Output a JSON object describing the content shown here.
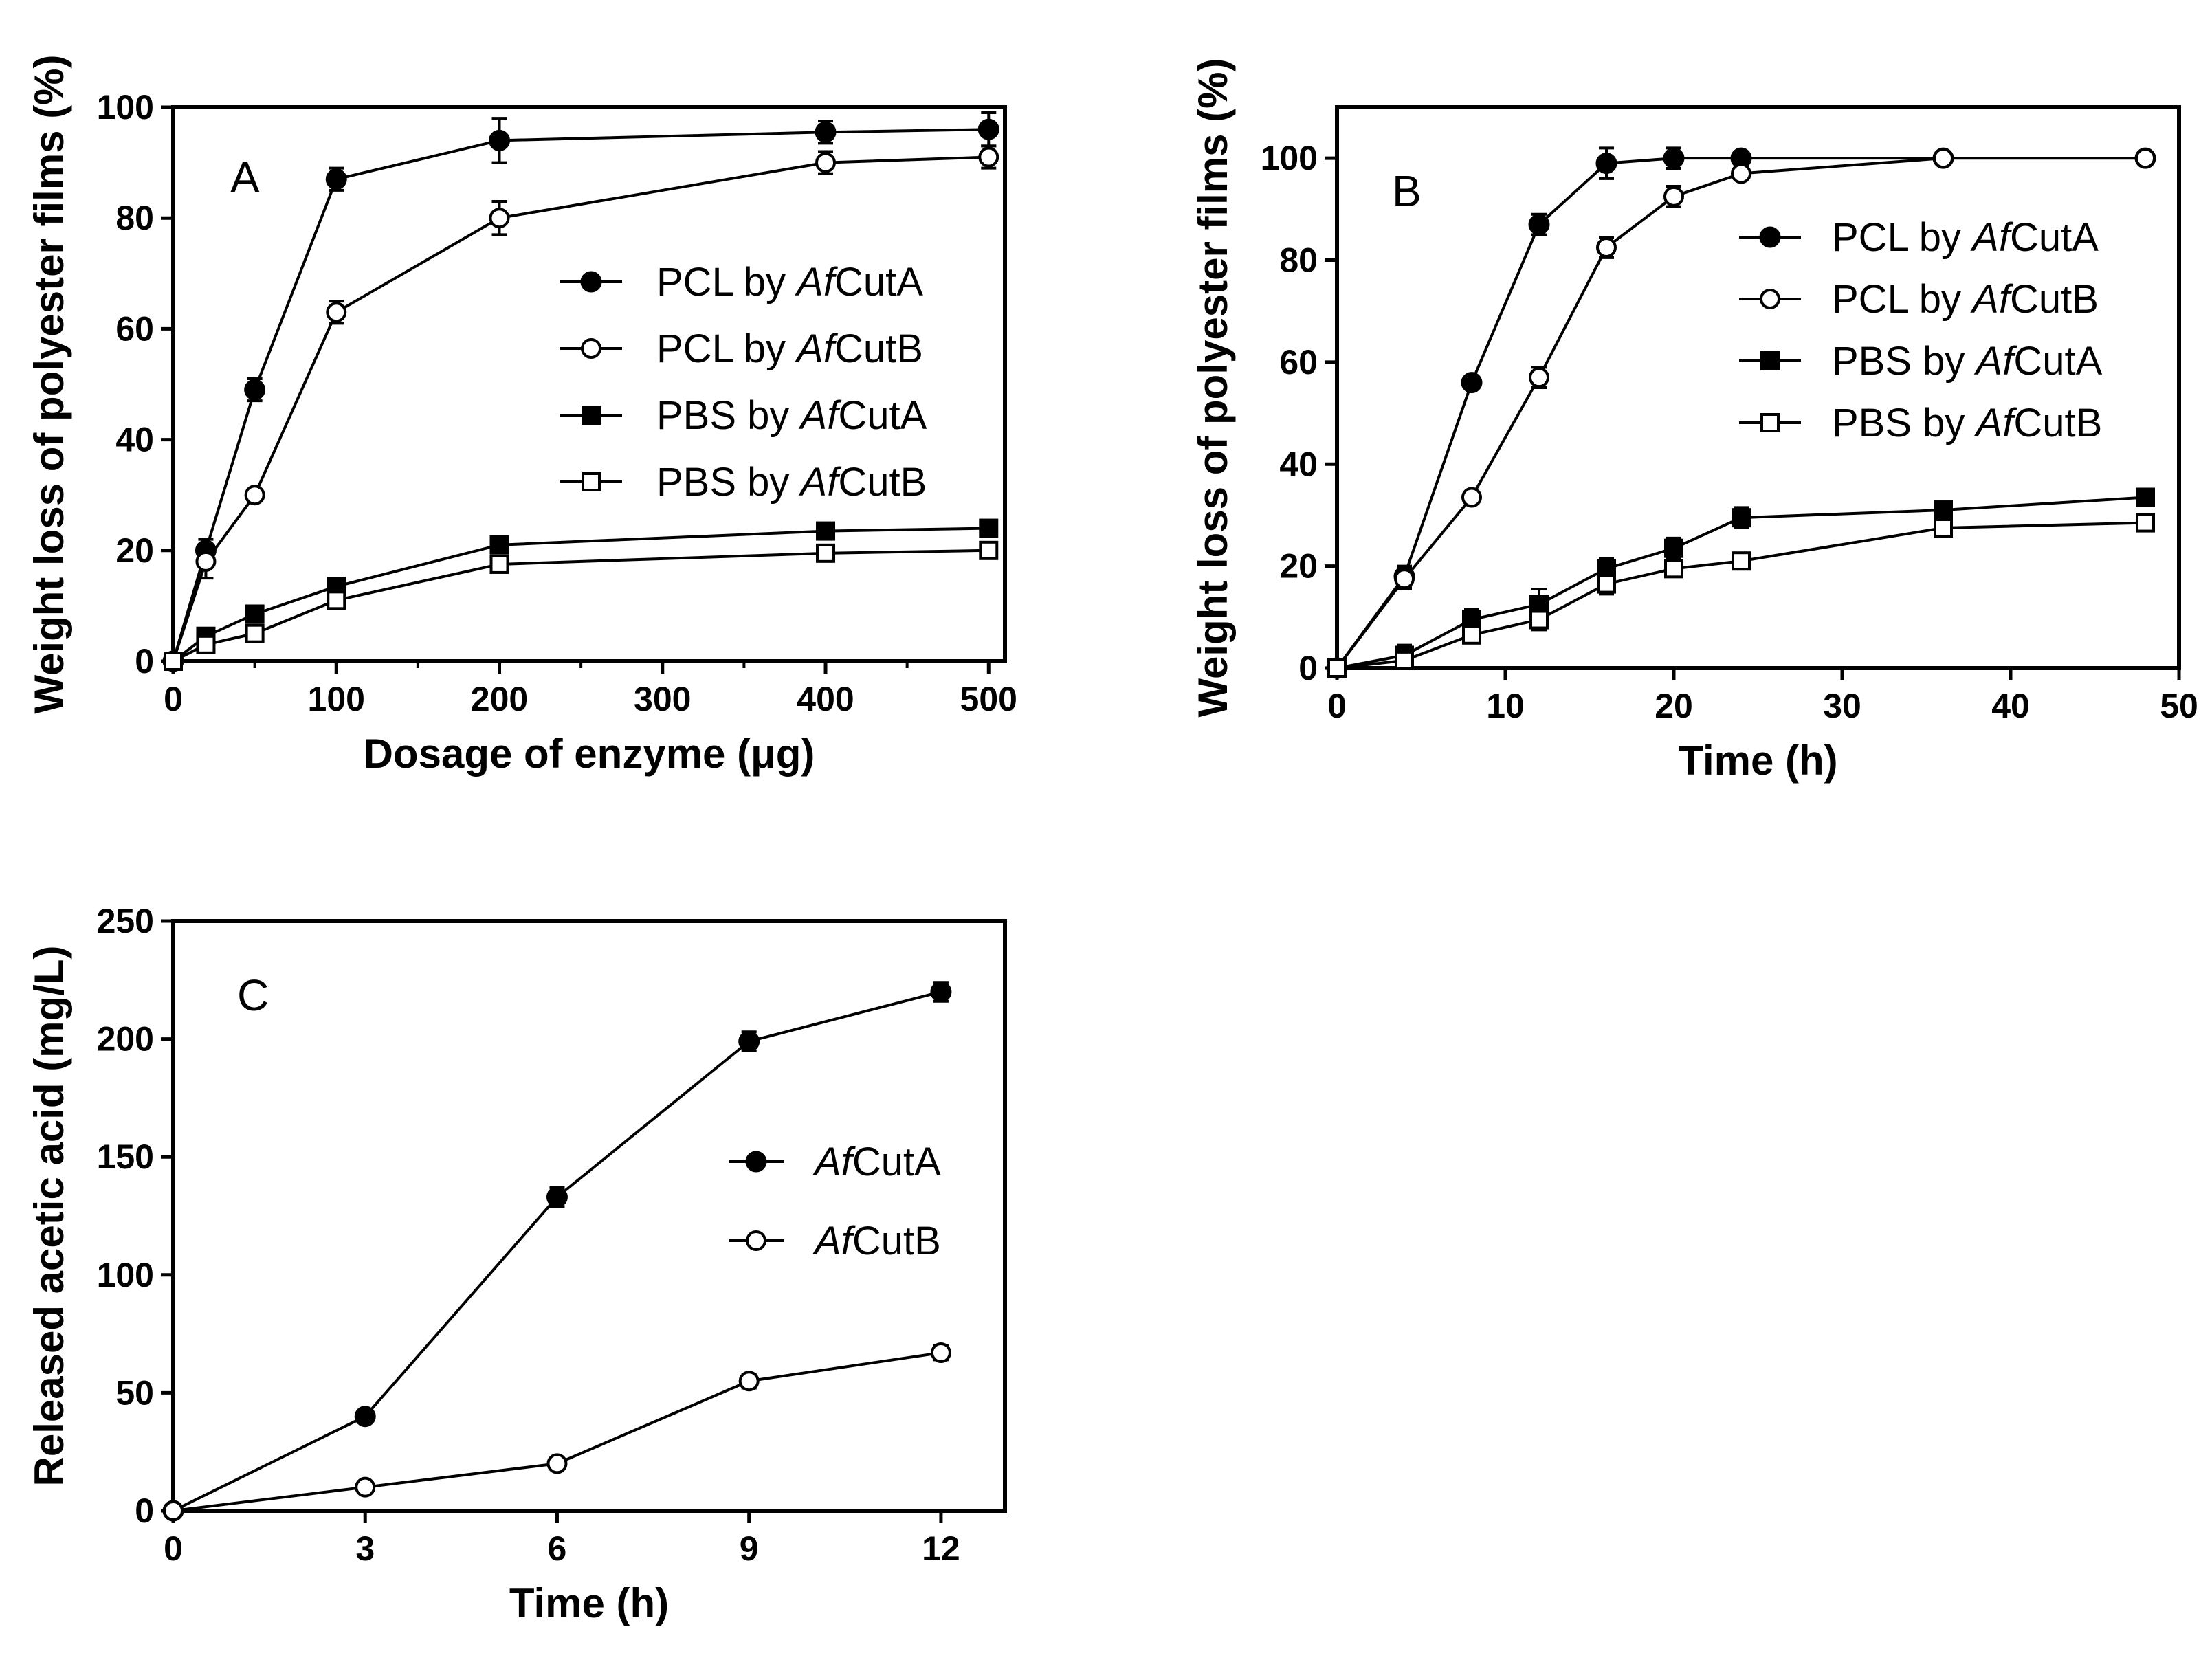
{
  "chart_data": [
    {
      "type": "line",
      "panel_label": "A",
      "xlabel": "Dosage of enzyme (μg)",
      "ylabel": "Weight loss of polyester films (%)",
      "xlim": [
        0,
        510
      ],
      "ylim": [
        0,
        100
      ],
      "xticks": [
        0,
        100,
        200,
        300,
        400,
        500
      ],
      "yticks": [
        0,
        20,
        40,
        60,
        80,
        100
      ],
      "xtick_labels": [
        "0",
        "100",
        "200",
        "300",
        "400",
        "500"
      ],
      "ytick_labels": [
        "0",
        "20",
        "40",
        "60",
        "80",
        "100"
      ],
      "legend_position": "right-middle",
      "series": [
        {
          "name": "PCL by AfCutA",
          "name_prefix": "PCL by ",
          "name_italic": "Af",
          "name_suffix": "CutA",
          "marker": "filled-circle",
          "x": [
            0,
            20,
            50,
            100,
            200,
            400,
            500
          ],
          "y": [
            0,
            20,
            49,
            87,
            94,
            95.5,
            96
          ],
          "err": [
            0,
            2,
            2,
            2,
            4,
            2,
            3
          ]
        },
        {
          "name": "PCL by AfCutB",
          "name_prefix": "PCL by ",
          "name_italic": "Af",
          "name_suffix": "CutB",
          "marker": "open-circle",
          "x": [
            0,
            20,
            50,
            100,
            200,
            400,
            500
          ],
          "y": [
            0,
            18,
            30,
            63,
            80,
            90,
            91
          ],
          "err": [
            0,
            3,
            1,
            2,
            3,
            2,
            2
          ]
        },
        {
          "name": "PBS by AfCutA",
          "name_prefix": "PBS by ",
          "name_italic": "Af",
          "name_suffix": "CutA",
          "marker": "filled-square",
          "x": [
            0,
            20,
            50,
            100,
            200,
            400,
            500
          ],
          "y": [
            0,
            4.5,
            8.5,
            13.5,
            21,
            23.5,
            24
          ],
          "err": [
            0,
            1,
            1,
            1,
            1,
            1,
            1
          ]
        },
        {
          "name": "PBS by AfCutB",
          "name_prefix": "PBS by ",
          "name_italic": "Af",
          "name_suffix": "CutB",
          "marker": "open-square",
          "x": [
            0,
            20,
            50,
            100,
            200,
            400,
            500
          ],
          "y": [
            0,
            3,
            5,
            11,
            17.5,
            19.5,
            20
          ],
          "err": [
            0,
            1,
            1,
            1,
            1,
            1,
            1
          ]
        }
      ]
    },
    {
      "type": "line",
      "panel_label": "B",
      "xlabel": "Time (h)",
      "ylabel": "Weight loss of polyester films (%)",
      "xlim": [
        0,
        50
      ],
      "ylim": [
        0,
        110
      ],
      "xticks": [
        0,
        10,
        20,
        30,
        40,
        50
      ],
      "yticks": [
        0,
        20,
        40,
        60,
        80,
        100
      ],
      "xtick_labels": [
        "0",
        "10",
        "20",
        "30",
        "40",
        "50"
      ],
      "ytick_labels": [
        "0",
        "20",
        "40",
        "60",
        "80",
        "100"
      ],
      "legend_position": "right-middle",
      "series": [
        {
          "name": "PCL by AfCutA",
          "name_prefix": "PCL by ",
          "name_italic": "Af",
          "name_suffix": "CutA",
          "marker": "filled-circle",
          "x": [
            0,
            4,
            8,
            12,
            16,
            20,
            24,
            36,
            48
          ],
          "y": [
            0,
            18,
            56,
            87,
            99,
            100,
            100,
            100,
            100
          ],
          "err": [
            0,
            2,
            1,
            2,
            3,
            2,
            1,
            1,
            1
          ]
        },
        {
          "name": "PCL by AfCutB",
          "name_prefix": "PCL by ",
          "name_italic": "Af",
          "name_suffix": "CutB",
          "marker": "open-circle",
          "x": [
            0,
            4,
            8,
            12,
            16,
            20,
            24,
            36,
            48
          ],
          "y": [
            0,
            17.5,
            33.5,
            57,
            82.5,
            92.5,
            97,
            100,
            100
          ],
          "err": [
            0,
            2,
            1,
            2,
            2,
            2,
            1,
            1,
            1
          ]
        },
        {
          "name": "PBS by AfCutA",
          "name_prefix": "PBS by ",
          "name_italic": "Af",
          "name_suffix": "CutA",
          "marker": "filled-square",
          "x": [
            0,
            4,
            8,
            12,
            16,
            20,
            24,
            36,
            48
          ],
          "y": [
            0,
            2.5,
            9.5,
            12.5,
            19.5,
            23.5,
            29.5,
            31,
            33.5
          ],
          "err": [
            0,
            2,
            2,
            3,
            2,
            2,
            2,
            1,
            1
          ]
        },
        {
          "name": "PBS by AfCutB",
          "name_prefix": "PBS by ",
          "name_italic": "Af",
          "name_suffix": "CutB",
          "marker": "open-square",
          "x": [
            0,
            4,
            8,
            12,
            16,
            20,
            24,
            36,
            48
          ],
          "y": [
            0,
            1.5,
            6.5,
            9.5,
            16.5,
            19.5,
            21,
            27.5,
            28.5
          ],
          "err": [
            0,
            1,
            1,
            2,
            2,
            1,
            1,
            1,
            1
          ]
        }
      ]
    },
    {
      "type": "line",
      "panel_label": "C",
      "xlabel": "Time (h)",
      "ylabel": "Released acetic acid (mg/L)",
      "xlim": [
        0,
        13
      ],
      "ylim": [
        0,
        250
      ],
      "xticks": [
        0,
        3,
        6,
        9,
        12
      ],
      "yticks": [
        0,
        50,
        100,
        150,
        200,
        250
      ],
      "xtick_labels": [
        "0",
        "3",
        "6",
        "9",
        "12"
      ],
      "ytick_labels": [
        "0",
        "50",
        "100",
        "150",
        "200",
        "250"
      ],
      "legend_position": "right-middle",
      "series": [
        {
          "name": "AfCutA",
          "name_prefix": "",
          "name_italic": "Af",
          "name_suffix": "CutA",
          "marker": "filled-circle",
          "x": [
            0,
            3,
            6,
            9,
            12
          ],
          "y": [
            0,
            40,
            133,
            199,
            220
          ],
          "err": [
            0,
            2,
            4,
            4,
            4
          ]
        },
        {
          "name": "AfCutB",
          "name_prefix": "",
          "name_italic": "Af",
          "name_suffix": "CutB",
          "marker": "open-circle",
          "x": [
            0,
            3,
            6,
            9,
            12
          ],
          "y": [
            0,
            10,
            20,
            55,
            67
          ],
          "err": [
            0,
            1,
            2,
            3,
            3
          ]
        }
      ]
    }
  ]
}
